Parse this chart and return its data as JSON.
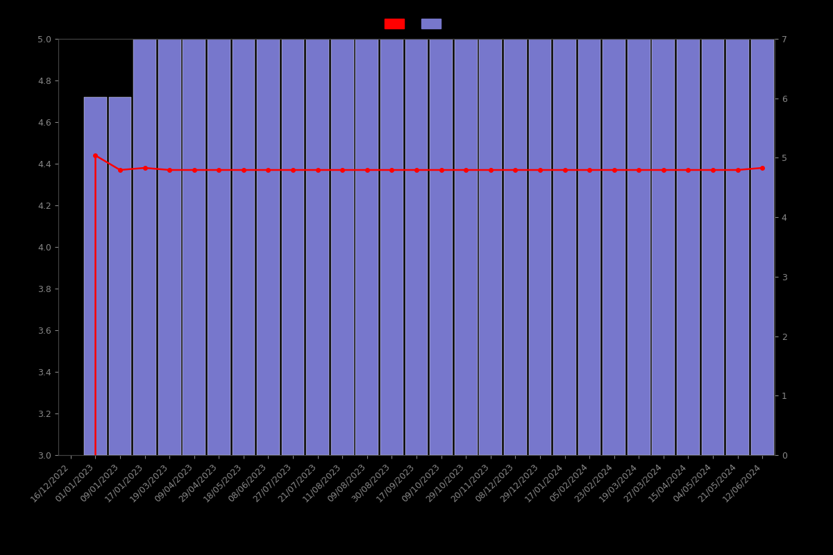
{
  "background_color": "#000000",
  "bar_color": "#7777cc",
  "bar_edge_color": "#ffffff",
  "bar_edge_width": 0.3,
  "line_color": "#ff0000",
  "line_marker_color": "#ff0000",
  "ylim_left": [
    3.0,
    5.0
  ],
  "ylim_right": [
    0,
    7
  ],
  "yticks_left": [
    3.0,
    3.2,
    3.4,
    3.6,
    3.8,
    4.0,
    4.2,
    4.4,
    4.6,
    4.8,
    5.0
  ],
  "yticks_right": [
    0,
    1,
    2,
    3,
    4,
    5,
    6,
    7
  ],
  "dates": [
    "16/12/2022",
    "01/01/2023",
    "09/01/2023",
    "17/01/2023",
    "19/03/2023",
    "09/04/2023",
    "29/04/2023",
    "18/05/2023",
    "08/06/2023",
    "27/07/2023",
    "21/07/2023",
    "11/08/2023",
    "09/08/2023",
    "30/08/2023",
    "17/09/2023",
    "09/10/2023",
    "29/10/2023",
    "20/11/2023",
    "08/12/2023",
    "29/12/2023",
    "17/01/2024",
    "05/02/2024",
    "23/02/2024",
    "19/03/2024",
    "27/03/2024",
    "15/04/2024",
    "04/05/2024",
    "21/05/2024",
    "12/06/2024"
  ],
  "bar_heights": [
    0.0,
    4.72,
    4.72,
    5.0,
    5.0,
    5.0,
    5.0,
    5.0,
    5.0,
    5.0,
    5.0,
    5.0,
    5.0,
    5.0,
    5.0,
    5.0,
    5.0,
    5.0,
    5.0,
    5.0,
    5.0,
    5.0,
    5.0,
    5.0,
    5.0,
    5.0,
    5.0,
    5.0,
    5.0
  ],
  "line_values": [
    null,
    4.44,
    4.37,
    4.38,
    4.37,
    4.37,
    4.37,
    4.37,
    4.37,
    4.37,
    4.37,
    4.37,
    4.37,
    4.37,
    4.37,
    4.37,
    4.37,
    4.37,
    4.37,
    4.37,
    4.37,
    4.37,
    4.37,
    4.37,
    4.37,
    4.37,
    4.37,
    4.37,
    4.38
  ],
  "tick_color": "#888888",
  "tick_fontsize": 9,
  "spine_color": "#444444",
  "bar_width": 0.92,
  "line_width": 1.8,
  "marker_size": 4
}
